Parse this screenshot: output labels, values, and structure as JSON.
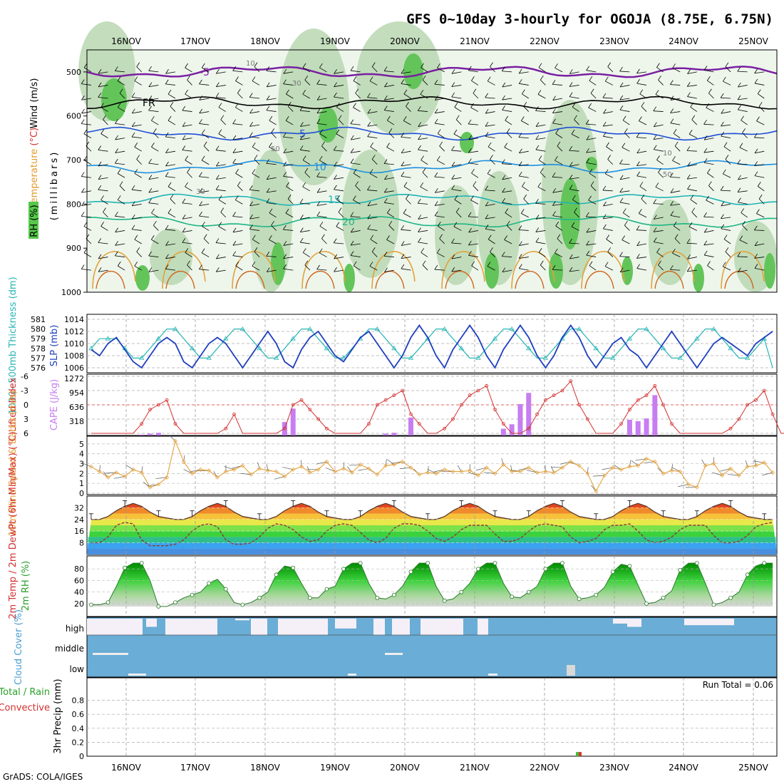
{
  "title": "GFS 0~10day 3-hourly for OGOJA (8.75E, 6.75N)",
  "dates": [
    "16NOV",
    "17NOV",
    "18NOV",
    "19NOV",
    "20NOV",
    "21NOV",
    "22NOV",
    "23NOV",
    "24NOV",
    "25NOV"
  ],
  "credit": "GrADS: COLA/IGES",
  "colors": {
    "temp_contour": "#7a1fa2",
    "wind_barb": "#000000",
    "rh_light": "#e6f2e4",
    "rh_mid": "#b9d7b2",
    "rh_dark": "#63c45a",
    "slp": "#1f3fbf",
    "thickness": "#2ab5b5",
    "cape": "#c77ef0",
    "lifted_index": "#d43030",
    "wind10m": "#e3a23c",
    "cloud": "#6aadd6",
    "precip_rain": "#3cc23c",
    "precip_conv": "#e23030"
  },
  "chart_data": [
    {
      "panel": "upper_air",
      "type": "heatmap",
      "ylabel_parts": [
        "Wind (m/s)",
        "Temperature (°C)",
        "RH (%)"
      ],
      "yaxis_label": "(millibars)",
      "yticks": [
        500,
        600,
        700,
        800,
        900,
        1000
      ],
      "ylim": [
        1000,
        450
      ],
      "rh_contour_labels": [
        "10",
        "30",
        "50"
      ],
      "temperature_contours": [
        {
          "label": "-5",
          "approx_level_mb": 500,
          "color": "#7a1fa2"
        },
        {
          "label": "FR",
          "approx_level_mb": 570,
          "color": "#000000"
        },
        {
          "label": "5",
          "approx_level_mb": 640,
          "color": "#1f4fd6"
        },
        {
          "label": "10",
          "approx_level_mb": 715,
          "color": "#1e90e0"
        },
        {
          "label": "15",
          "approx_level_mb": 790,
          "color": "#20b4b4"
        },
        {
          "label": "20",
          "approx_level_mb": 840,
          "color": "#1fb585"
        }
      ]
    },
    {
      "panel": "slp_thickness",
      "type": "line",
      "ylabel_left": "1000~500mb Thickness (dm)",
      "ylabel_right": "SLP (mb)",
      "yticks_left": [
        576,
        577,
        578,
        579,
        580,
        581
      ],
      "yticks_right": [
        1006,
        1008,
        1010,
        1012,
        1014
      ],
      "series": [
        {
          "name": "SLP (mb)",
          "values": [
            1009,
            1008,
            1010,
            1011,
            1009,
            1007,
            1006,
            1008,
            1010,
            1011,
            1010,
            1007,
            1006,
            1008,
            1010,
            1011,
            1010,
            1008,
            1006,
            1008,
            1010,
            1012,
            1010,
            1007,
            1006,
            1009,
            1011,
            1012,
            1010,
            1008,
            1007,
            1009,
            1011,
            1012,
            1010,
            1008,
            1006,
            1008,
            1011,
            1013,
            1011,
            1008,
            1006,
            1009,
            1011,
            1013,
            1011,
            1008,
            1006,
            1009,
            1011,
            1013,
            1011,
            1008,
            1006,
            1008,
            1011,
            1013,
            1011,
            1008,
            1006,
            1008,
            1010,
            1011,
            1009,
            1008,
            1006,
            1008,
            1010,
            1012,
            1010,
            1008,
            1006,
            1008,
            1010,
            1011,
            1010,
            1009,
            1008,
            1010,
            1011,
            1012
          ]
        },
        {
          "name": "Thickness (dm)",
          "values": [
            578,
            579,
            579,
            579,
            578,
            577,
            577,
            578,
            579,
            580,
            580,
            579,
            578,
            577,
            577,
            578,
            579,
            580,
            580,
            579,
            578,
            577,
            577,
            578,
            579,
            580,
            580,
            579,
            578,
            577,
            577,
            578,
            579,
            580,
            580,
            579,
            578,
            577,
            577,
            578,
            579,
            580,
            580,
            579,
            578,
            577,
            577,
            578,
            579,
            580,
            580,
            579,
            578,
            577,
            577,
            578,
            579,
            580,
            580,
            579,
            578,
            577,
            577,
            578,
            579,
            580,
            580,
            579,
            578,
            577,
            577,
            578,
            579,
            580,
            580,
            579,
            578,
            577,
            577,
            578,
            579,
            576
          ]
        }
      ]
    },
    {
      "panel": "cape_lifted_index",
      "type": "bar",
      "ylabel_left": "Lifted Index",
      "ylabel_right": "CAPE (J/kg)",
      "yticks_left": [
        -6,
        -3,
        0,
        3,
        6
      ],
      "yticks_right": [
        318,
        636,
        954,
        1272
      ],
      "cape_values": [
        0,
        0,
        0,
        0,
        0,
        0,
        20,
        40,
        60,
        0,
        0,
        0,
        0,
        0,
        0,
        0,
        0,
        0,
        0,
        0,
        0,
        0,
        0,
        300,
        600,
        0,
        0,
        0,
        0,
        0,
        0,
        0,
        0,
        0,
        0,
        40,
        60,
        0,
        400,
        0,
        0,
        0,
        0,
        0,
        0,
        0,
        0,
        0,
        0,
        150,
        250,
        700,
        950,
        0,
        0,
        0,
        0,
        0,
        0,
        0,
        0,
        0,
        0,
        0,
        350,
        320,
        380,
        900,
        0,
        0,
        0,
        0,
        0,
        0,
        0,
        0,
        0,
        0,
        0,
        0,
        0,
        0,
        0,
        0
      ],
      "lifted_index": [
        6,
        6,
        6,
        6,
        6,
        6,
        4,
        1,
        0,
        -1,
        4,
        6,
        6,
        6,
        6,
        6,
        5,
        2,
        6,
        6,
        6,
        6,
        6,
        5,
        0,
        -1,
        1,
        3,
        5,
        6,
        6,
        6,
        6,
        4,
        0,
        -1,
        -2,
        -3,
        2,
        4,
        6,
        6,
        5,
        3,
        0,
        -2,
        -3,
        -4,
        1,
        4,
        6,
        6,
        5,
        2,
        -1,
        -2,
        -3,
        -5,
        0,
        3,
        6,
        6,
        6,
        4,
        1,
        -1,
        -2,
        -4,
        0,
        4,
        6,
        6,
        6,
        6,
        6,
        6,
        5,
        3,
        0,
        -1,
        -3,
        2,
        6,
        6
      ]
    },
    {
      "panel": "wind_10m",
      "type": "line",
      "ylabel": "10m Wind Speed & Barbs (m/s)",
      "yticks": [
        0,
        1,
        2,
        3,
        4,
        5
      ],
      "series": [
        {
          "name": "10m Wind Speed",
          "values": [
            2.7,
            2.2,
            1.6,
            2.1,
            1.7,
            2.4,
            2.1,
            0.6,
            0.9,
            1.6,
            5.3,
            3.2,
            2.0,
            2.4,
            2.3,
            1.6,
            2.2,
            2.4,
            2.8,
            1.9,
            2.5,
            2.3,
            2.2,
            1.7,
            2.4,
            2.7,
            2.1,
            2.4,
            3.2,
            2.2,
            2.5,
            2.1,
            2.9,
            2.5,
            1.9,
            2.8,
            2.9,
            3.2,
            2.6,
            1.9,
            2.1,
            2.0,
            2.4,
            2.2,
            2.2,
            2.3,
            1.8,
            2.6,
            2.0,
            2.9,
            2.2,
            2.2,
            2.6,
            2.1,
            2.2,
            2.1,
            2.6,
            3.2,
            2.8,
            2.0,
            0.2,
            1.8,
            2.6,
            2.4,
            2.7,
            2.8,
            3.5,
            3.2,
            2.0,
            2.3,
            2.2,
            0.9,
            0.6,
            2.8,
            3.0,
            1.8,
            2.5,
            1.8,
            2.7,
            2.8,
            3.1,
            2.1
          ]
        }
      ]
    },
    {
      "panel": "temp_2m",
      "type": "area",
      "ylabel": "2m Temp / 2m DewPt (6hr Min/Max) (°C)",
      "yticks": [
        8,
        16,
        24,
        32
      ],
      "series": [
        {
          "name": "2m Temp",
          "values": [
            24,
            24,
            26,
            30,
            33,
            35,
            33,
            29,
            26,
            25,
            24,
            24,
            26,
            30,
            33,
            35,
            33,
            29,
            26,
            25,
            24,
            24,
            26,
            30,
            33,
            35,
            33,
            29,
            26,
            25,
            24,
            24,
            26,
            30,
            33,
            35,
            33,
            29,
            26,
            25,
            24,
            24,
            26,
            30,
            33,
            35,
            33,
            29,
            26,
            25,
            24,
            24,
            26,
            30,
            33,
            35,
            33,
            29,
            26,
            25,
            24,
            24,
            26,
            30,
            33,
            35,
            33,
            29,
            26,
            25,
            24,
            24,
            26,
            30,
            33,
            35,
            33,
            29,
            26,
            25,
            24,
            24
          ]
        },
        {
          "name": "2m DewPt",
          "values": [
            8,
            8,
            12,
            20,
            22,
            21,
            10,
            6,
            6,
            6,
            7,
            10,
            16,
            20,
            21,
            19,
            10,
            7,
            7,
            8,
            12,
            18,
            21,
            20,
            17,
            12,
            9,
            10,
            16,
            20,
            21,
            20,
            15,
            10,
            8,
            11,
            18,
            21,
            21,
            20,
            16,
            11,
            9,
            12,
            17,
            20,
            20,
            20,
            14,
            9,
            9,
            11,
            16,
            20,
            21,
            20,
            19,
            12,
            8,
            9,
            11,
            17,
            20,
            20,
            21,
            16,
            10,
            8,
            9,
            12,
            17,
            20,
            20,
            20,
            13,
            8,
            8,
            9,
            13,
            19,
            21,
            22
          ]
        }
      ]
    },
    {
      "panel": "rh_2m",
      "type": "area",
      "ylabel": "2m RH (%)",
      "yticks": [
        20,
        40,
        60,
        80
      ],
      "series": [
        {
          "name": "2m RH",
          "values": [
            18,
            18,
            22,
            50,
            82,
            90,
            90,
            60,
            15,
            15,
            22,
            30,
            35,
            40,
            55,
            62,
            45,
            22,
            18,
            22,
            30,
            40,
            70,
            85,
            82,
            55,
            30,
            30,
            45,
            50,
            80,
            90,
            90,
            55,
            30,
            28,
            35,
            50,
            75,
            90,
            90,
            50,
            25,
            28,
            40,
            55,
            80,
            90,
            90,
            55,
            32,
            30,
            40,
            50,
            80,
            90,
            90,
            50,
            28,
            30,
            35,
            48,
            75,
            88,
            85,
            52,
            20,
            22,
            30,
            42,
            78,
            90,
            90,
            55,
            18,
            22,
            30,
            40,
            70,
            85,
            90,
            90
          ]
        }
      ]
    },
    {
      "panel": "cloud_cover",
      "type": "heatmap",
      "ylabel": "Cloud Cover (%)",
      "rows": [
        "high",
        "middle",
        "low"
      ]
    },
    {
      "panel": "precip",
      "type": "bar",
      "ylabel": "3hr Precip (mm)",
      "ylabel_side": [
        "Total / Rain",
        "Convective"
      ],
      "yticks": [
        0,
        0.2,
        0.4,
        0.6,
        0.8
      ],
      "ylim": [
        0,
        1
      ],
      "run_total": "Run Total = 0.06",
      "values": [
        {
          "x": "22NOV 12Z",
          "rain": 0.06,
          "convective": 0.06
        }
      ]
    }
  ]
}
